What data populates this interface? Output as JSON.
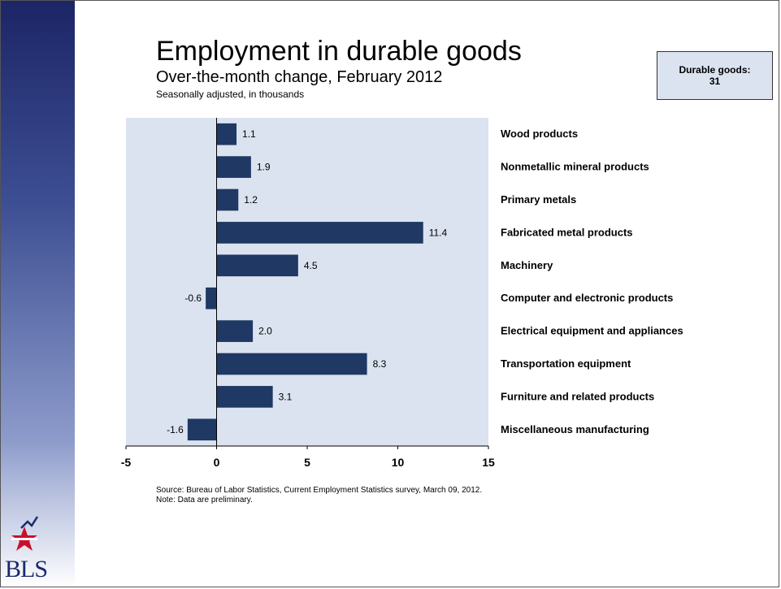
{
  "slide": {
    "title": "Employment in durable goods",
    "subtitle": "Over-the-month change, February 2012",
    "note": "Seasonally adjusted, in thousands",
    "callout_label": "Durable goods:",
    "callout_value": "31",
    "source_line1": "Source: Bureau of Labor Statistics, Current Employment Statistics survey, March 09, 2012.",
    "source_line2": "Note: Data are preliminary.",
    "logo_text": "BLS"
  },
  "colors": {
    "bar": "#1f3864",
    "plot_bg": "#dbe3f0"
  },
  "chart_data": {
    "type": "bar",
    "orientation": "horizontal",
    "title": "Employment in durable goods",
    "categories": [
      "Wood products",
      "Nonmetallic mineral products",
      "Primary metals",
      "Fabricated metal products",
      "Machinery",
      "Computer and electronic products",
      "Electrical equipment and appliances",
      "Transportation equipment",
      "Furniture and related products",
      "Miscellaneous manufacturing"
    ],
    "values": [
      1.1,
      1.9,
      1.2,
      11.4,
      4.5,
      -0.6,
      2.0,
      8.3,
      3.1,
      -1.6
    ],
    "value_labels": [
      "1.1",
      "1.9",
      "1.2",
      "11.4",
      "4.5",
      "-0.6",
      "2.0",
      "8.3",
      "3.1",
      "-1.6"
    ],
    "xlim": [
      -5,
      15
    ],
    "xticks": [
      -5,
      0,
      5,
      10,
      15
    ],
    "grid": false
  }
}
